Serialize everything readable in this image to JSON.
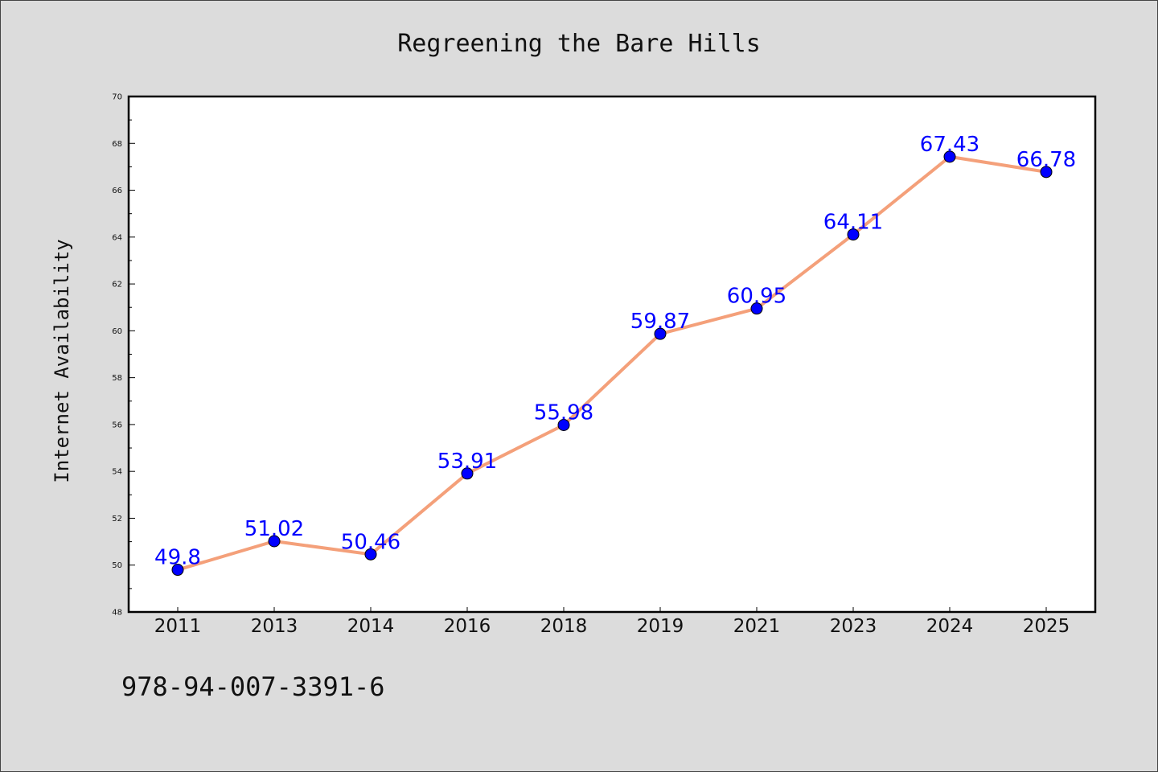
{
  "chart_data": {
    "type": "line",
    "title": "Regreening the Bare Hills",
    "xlabel": "",
    "ylabel": "Internet Availability",
    "categories": [
      "2011",
      "2013",
      "2014",
      "2016",
      "2018",
      "2019",
      "2021",
      "2023",
      "2024",
      "2025"
    ],
    "series": [
      {
        "values": [
          49.8,
          51.02,
          50.46,
          53.91,
          55.98,
          59.87,
          60.95,
          64.11,
          67.43,
          66.78
        ],
        "labels": [
          "49.8",
          "51.02",
          "50.46",
          "53.91",
          "55.98",
          "59.87",
          "60.95",
          "64.11",
          "67.43",
          "66.78"
        ],
        "line_color": "#f4a07a",
        "marker_color": "#0000ff"
      }
    ],
    "ylim": [
      48,
      70
    ],
    "yticks": [
      "48",
      "50",
      "52",
      "54",
      "56",
      "58",
      "60",
      "62",
      "64",
      "66",
      "68",
      "70"
    ],
    "grid": false,
    "legend": "none"
  },
  "footer": {
    "isbn": "978-94-007-3391-6"
  }
}
